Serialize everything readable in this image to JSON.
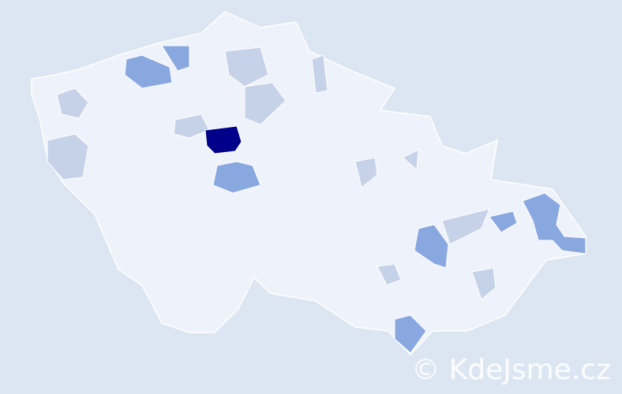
{
  "map": {
    "colors": {
      "background": "#dce6f2",
      "base": "#eef2fa",
      "border": "#ffffff",
      "low": "#c5d2e8",
      "medium": "#8aa8e0",
      "high": "#00008b"
    }
  },
  "watermark": "© KdeJsme.cz"
}
